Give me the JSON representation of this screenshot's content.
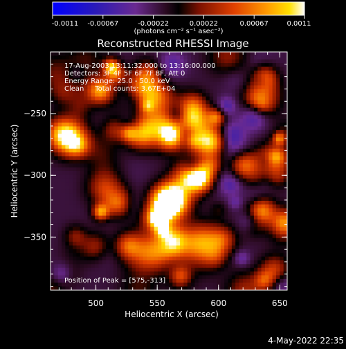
{
  "chart_data": {
    "type": "heatmap",
    "title": "Reconstructed RHESSI Image",
    "xlabel": "Heliocentric X (arcsec)",
    "ylabel": "Heliocentric Y (arcsec)",
    "xlim": [
      463,
      656
    ],
    "ylim": [
      -393,
      -200
    ],
    "x_ticks": [
      500,
      550,
      600,
      650
    ],
    "y_ticks": [
      -250,
      -300,
      -350
    ],
    "colorbar": {
      "min": -0.0011,
      "max": 0.0011,
      "ticks": [
        "-0.0011",
        "-0.00067",
        "-0.00022",
        "0.00022",
        "0.00067",
        "0.0011"
      ],
      "unit_label": "(photons cm⁻² s⁻¹ asec⁻²)",
      "colormap": [
        "#0000ff",
        "#3a1a9e",
        "#7a2a8a",
        "#000000",
        "#8a1a00",
        "#d84000",
        "#ff8c00",
        "#ffd200",
        "#ffffff"
      ]
    },
    "peak": {
      "x": 575,
      "y": -313
    }
  },
  "annotations": {
    "line1": "17-Aug-2003 13:11:32.000 to 13:16:00.000",
    "line2": "Detectors: 3F 4F 5F 6F 7F 8F, Att 0",
    "line3": "Energy Range: 25.0 - 50.0 keV",
    "line4": "Clean     Total counts: 3.67E+04",
    "peak_text": "Position of Peak = [575,-313]"
  },
  "footer": {
    "timestamp": "4-May-2022 22:35"
  }
}
